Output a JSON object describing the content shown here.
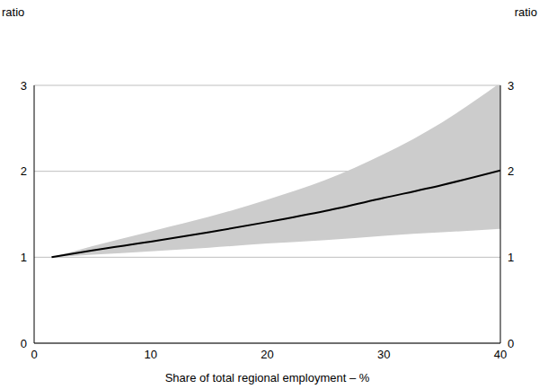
{
  "chart_data": {
    "type": "line",
    "x_label": "Share of total regional employment – %",
    "y_label": "ratio",
    "y2_label": "ratio",
    "x": [
      1.5,
      5,
      10,
      15,
      20,
      25,
      30,
      35,
      40
    ],
    "values": [
      1.0,
      1.08,
      1.18,
      1.29,
      1.41,
      1.54,
      1.69,
      1.84,
      2.01
    ],
    "color": "#000000",
    "band": {
      "lower": [
        1.0,
        1.03,
        1.07,
        1.11,
        1.16,
        1.2,
        1.25,
        1.29,
        1.33
      ],
      "upper": [
        1.0,
        1.13,
        1.3,
        1.47,
        1.67,
        1.9,
        2.2,
        2.57,
        3.03
      ],
      "color": "#cccccc"
    },
    "xlim": [
      0,
      40
    ],
    "xticks": [
      0,
      10,
      20,
      30,
      40
    ],
    "ylim": [
      0,
      3
    ],
    "yticks": [
      0,
      1,
      2,
      3
    ],
    "y2lim": [
      0,
      3
    ],
    "y2ticks": [
      0,
      1,
      2,
      3
    ],
    "grid": true,
    "line_style": "solid",
    "marker": "none"
  }
}
